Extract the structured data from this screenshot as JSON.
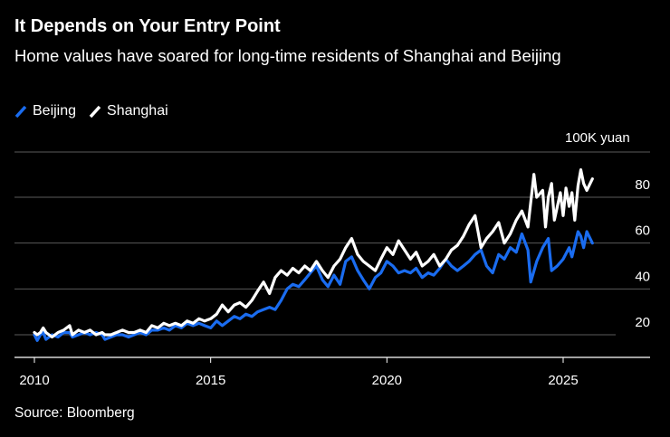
{
  "title": "It Depends on Your Entry Point",
  "subtitle": "Home values have soared for long-time residents of Shanghai and Beijing",
  "source": "Source: Bloomberg",
  "colors": {
    "beijing": "#1a6cf0",
    "shanghai": "#ffffff",
    "grid": "#5a5a5a",
    "background": "#000000"
  },
  "chart_data": {
    "type": "line",
    "unit_label": "100K yuan",
    "ylim": [
      10,
      90
    ],
    "xlim": [
      2010,
      2026.5
    ],
    "y_ticks": [
      20,
      40,
      60,
      80
    ],
    "x_ticks": [
      2010,
      2015,
      2020,
      2025
    ],
    "grid": true,
    "legend_position": "top-left",
    "series": [
      {
        "name": "Beijing",
        "color": "#1a6cf0",
        "points": [
          [
            2010.0,
            20
          ],
          [
            2010.08,
            17.5
          ],
          [
            2010.17,
            20
          ],
          [
            2010.25,
            21
          ],
          [
            2010.33,
            18
          ],
          [
            2010.5,
            20
          ],
          [
            2010.67,
            19
          ],
          [
            2010.83,
            21
          ],
          [
            2011.0,
            21
          ],
          [
            2011.08,
            19
          ],
          [
            2011.25,
            20
          ],
          [
            2011.42,
            21
          ],
          [
            2011.58,
            20
          ],
          [
            2011.75,
            21
          ],
          [
            2011.92,
            20
          ],
          [
            2012.0,
            18
          ],
          [
            2012.17,
            19
          ],
          [
            2012.33,
            20
          ],
          [
            2012.5,
            20
          ],
          [
            2012.67,
            19
          ],
          [
            2012.83,
            20
          ],
          [
            2013.0,
            21
          ],
          [
            2013.17,
            20
          ],
          [
            2013.33,
            22
          ],
          [
            2013.5,
            22
          ],
          [
            2013.67,
            23
          ],
          [
            2013.83,
            22
          ],
          [
            2014.0,
            24
          ],
          [
            2014.17,
            23
          ],
          [
            2014.33,
            25
          ],
          [
            2014.5,
            24
          ],
          [
            2014.67,
            25
          ],
          [
            2014.83,
            24
          ],
          [
            2015.0,
            23
          ],
          [
            2015.17,
            26
          ],
          [
            2015.33,
            24
          ],
          [
            2015.5,
            26
          ],
          [
            2015.67,
            28
          ],
          [
            2015.83,
            27
          ],
          [
            2016.0,
            29
          ],
          [
            2016.17,
            28
          ],
          [
            2016.33,
            30
          ],
          [
            2016.5,
            31
          ],
          [
            2016.67,
            32
          ],
          [
            2016.83,
            31
          ],
          [
            2017.0,
            35
          ],
          [
            2017.17,
            40
          ],
          [
            2017.33,
            42
          ],
          [
            2017.5,
            41
          ],
          [
            2017.67,
            44
          ],
          [
            2017.83,
            47
          ],
          [
            2018.0,
            50
          ],
          [
            2018.17,
            44
          ],
          [
            2018.33,
            41
          ],
          [
            2018.5,
            46
          ],
          [
            2018.67,
            42
          ],
          [
            2018.83,
            52
          ],
          [
            2019.0,
            54
          ],
          [
            2019.17,
            48
          ],
          [
            2019.33,
            44
          ],
          [
            2019.5,
            40
          ],
          [
            2019.67,
            45
          ],
          [
            2019.83,
            47
          ],
          [
            2020.0,
            52
          ],
          [
            2020.17,
            50
          ],
          [
            2020.33,
            47
          ],
          [
            2020.5,
            48
          ],
          [
            2020.67,
            47
          ],
          [
            2020.83,
            49
          ],
          [
            2021.0,
            45
          ],
          [
            2021.17,
            47
          ],
          [
            2021.33,
            46
          ],
          [
            2021.5,
            49
          ],
          [
            2021.67,
            53
          ],
          [
            2021.83,
            50
          ],
          [
            2022.0,
            48
          ],
          [
            2022.17,
            50
          ],
          [
            2022.33,
            52
          ],
          [
            2022.5,
            55
          ],
          [
            2022.67,
            57
          ],
          [
            2022.83,
            50
          ],
          [
            2023.0,
            47
          ],
          [
            2023.17,
            55
          ],
          [
            2023.33,
            53
          ],
          [
            2023.5,
            58
          ],
          [
            2023.67,
            56
          ],
          [
            2023.83,
            64
          ],
          [
            2024.0,
            57
          ],
          [
            2024.08,
            43
          ],
          [
            2024.25,
            52
          ],
          [
            2024.42,
            58
          ],
          [
            2024.58,
            62
          ],
          [
            2024.67,
            48
          ],
          [
            2024.83,
            50
          ],
          [
            2025.0,
            53
          ],
          [
            2025.17,
            58
          ],
          [
            2025.25,
            54
          ],
          [
            2025.42,
            65
          ],
          [
            2025.5,
            63
          ],
          [
            2025.58,
            58
          ],
          [
            2025.67,
            65
          ],
          [
            2025.83,
            60
          ]
        ]
      },
      {
        "name": "Shanghai",
        "color": "#ffffff",
        "points": [
          [
            2010.0,
            21
          ],
          [
            2010.08,
            20
          ],
          [
            2010.17,
            21
          ],
          [
            2010.25,
            23
          ],
          [
            2010.33,
            21
          ],
          [
            2010.5,
            19
          ],
          [
            2010.67,
            21
          ],
          [
            2010.83,
            22
          ],
          [
            2011.0,
            24
          ],
          [
            2011.08,
            20
          ],
          [
            2011.25,
            22
          ],
          [
            2011.42,
            21
          ],
          [
            2011.58,
            22
          ],
          [
            2011.75,
            20
          ],
          [
            2011.92,
            21
          ],
          [
            2012.0,
            20
          ],
          [
            2012.17,
            20
          ],
          [
            2012.33,
            21
          ],
          [
            2012.5,
            22
          ],
          [
            2012.67,
            21
          ],
          [
            2012.83,
            21
          ],
          [
            2013.0,
            22
          ],
          [
            2013.17,
            21
          ],
          [
            2013.33,
            24
          ],
          [
            2013.5,
            23
          ],
          [
            2013.67,
            25
          ],
          [
            2013.83,
            24
          ],
          [
            2014.0,
            25
          ],
          [
            2014.17,
            24
          ],
          [
            2014.33,
            26
          ],
          [
            2014.5,
            25
          ],
          [
            2014.67,
            27
          ],
          [
            2014.83,
            26
          ],
          [
            2015.0,
            27
          ],
          [
            2015.17,
            29
          ],
          [
            2015.33,
            33
          ],
          [
            2015.5,
            30
          ],
          [
            2015.67,
            33
          ],
          [
            2015.83,
            34
          ],
          [
            2016.0,
            32
          ],
          [
            2016.17,
            35
          ],
          [
            2016.33,
            39
          ],
          [
            2016.5,
            43
          ],
          [
            2016.67,
            38
          ],
          [
            2016.83,
            45
          ],
          [
            2017.0,
            48
          ],
          [
            2017.17,
            46
          ],
          [
            2017.33,
            49
          ],
          [
            2017.5,
            47
          ],
          [
            2017.67,
            50
          ],
          [
            2017.83,
            48
          ],
          [
            2018.0,
            52
          ],
          [
            2018.17,
            48
          ],
          [
            2018.33,
            45
          ],
          [
            2018.5,
            50
          ],
          [
            2018.67,
            53
          ],
          [
            2018.83,
            58
          ],
          [
            2019.0,
            62
          ],
          [
            2019.17,
            55
          ],
          [
            2019.33,
            52
          ],
          [
            2019.5,
            50
          ],
          [
            2019.67,
            48
          ],
          [
            2019.83,
            53
          ],
          [
            2020.0,
            58
          ],
          [
            2020.17,
            55
          ],
          [
            2020.33,
            61
          ],
          [
            2020.5,
            57
          ],
          [
            2020.67,
            53
          ],
          [
            2020.83,
            56
          ],
          [
            2021.0,
            50
          ],
          [
            2021.17,
            52
          ],
          [
            2021.33,
            55
          ],
          [
            2021.5,
            50
          ],
          [
            2021.67,
            53
          ],
          [
            2021.83,
            57
          ],
          [
            2022.0,
            59
          ],
          [
            2022.17,
            63
          ],
          [
            2022.33,
            68
          ],
          [
            2022.5,
            72
          ],
          [
            2022.67,
            58
          ],
          [
            2022.83,
            62
          ],
          [
            2023.0,
            65
          ],
          [
            2023.17,
            69
          ],
          [
            2023.33,
            60
          ],
          [
            2023.5,
            64
          ],
          [
            2023.67,
            70
          ],
          [
            2023.83,
            74
          ],
          [
            2024.0,
            67
          ],
          [
            2024.17,
            90
          ],
          [
            2024.25,
            80
          ],
          [
            2024.42,
            83
          ],
          [
            2024.5,
            67
          ],
          [
            2024.58,
            80
          ],
          [
            2024.67,
            86
          ],
          [
            2024.75,
            70
          ],
          [
            2024.92,
            82
          ],
          [
            2025.0,
            72
          ],
          [
            2025.08,
            84
          ],
          [
            2025.17,
            76
          ],
          [
            2025.25,
            82
          ],
          [
            2025.33,
            70
          ],
          [
            2025.42,
            85
          ],
          [
            2025.5,
            92
          ],
          [
            2025.58,
            86
          ],
          [
            2025.67,
            83
          ],
          [
            2025.83,
            88
          ]
        ]
      }
    ]
  }
}
